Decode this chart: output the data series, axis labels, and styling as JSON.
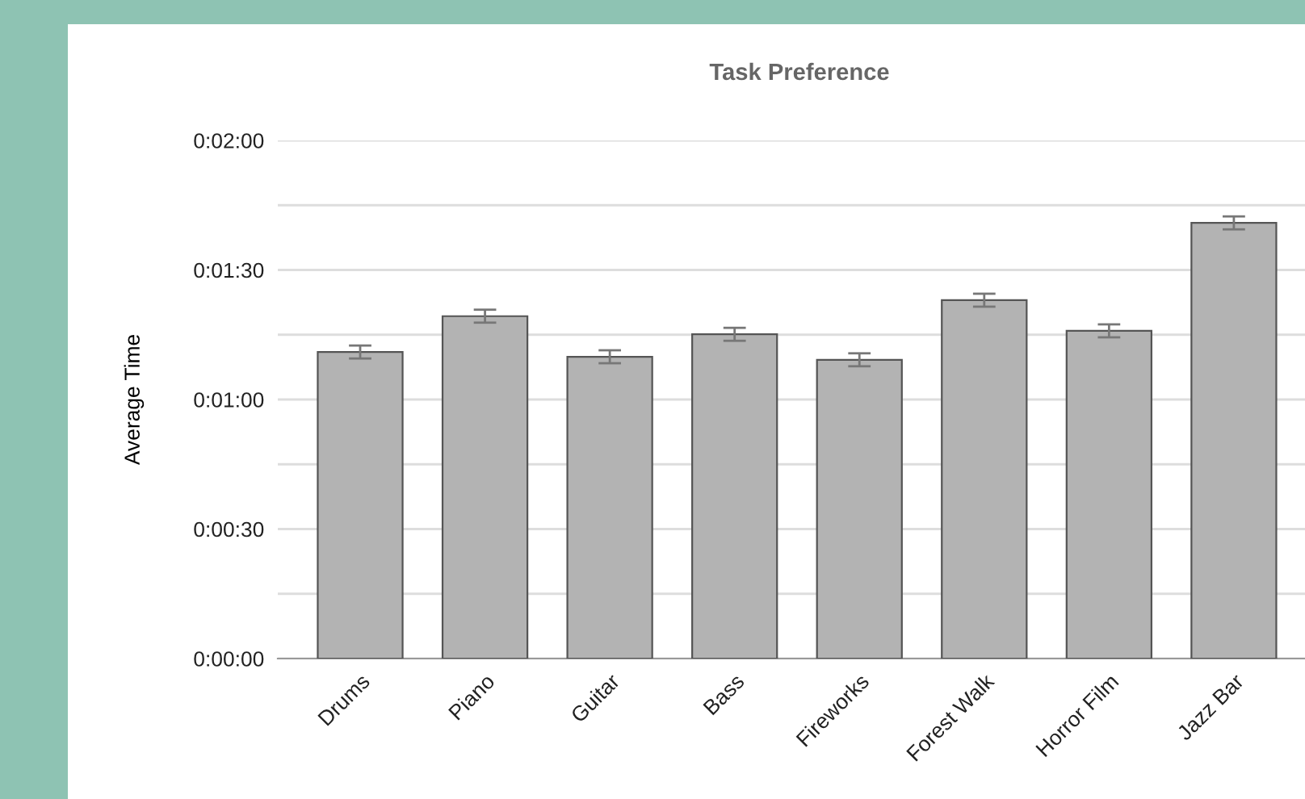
{
  "chart_data": {
    "type": "bar",
    "title": "Task Preference",
    "ylabel": "Average Time",
    "categories": [
      "Drums",
      "Piano",
      "Guitar",
      "Bass",
      "Fireworks",
      "Forest Walk",
      "Horror Film",
      "Jazz Bar"
    ],
    "values": [
      71,
      79.3,
      69.9,
      75.1,
      69.2,
      83,
      75.9,
      100.9
    ],
    "errors": [
      1.5,
      1.5,
      1.5,
      1.5,
      1.5,
      1.5,
      1.5,
      1.5
    ],
    "color": "#b3b3b3",
    "ylim": [
      0,
      120
    ],
    "yticks": [
      {
        "value": 0,
        "label": "0:00:00"
      },
      {
        "value": 15,
        "label": null
      },
      {
        "value": 30,
        "label": "0:00:30"
      },
      {
        "value": 45,
        "label": null
      },
      {
        "value": 60,
        "label": "0:01:00"
      },
      {
        "value": 75,
        "label": null
      },
      {
        "value": 90,
        "label": "0:01:30"
      },
      {
        "value": 105,
        "label": null
      },
      {
        "value": 120,
        "label": "0:02:00"
      }
    ],
    "grid": "y"
  }
}
